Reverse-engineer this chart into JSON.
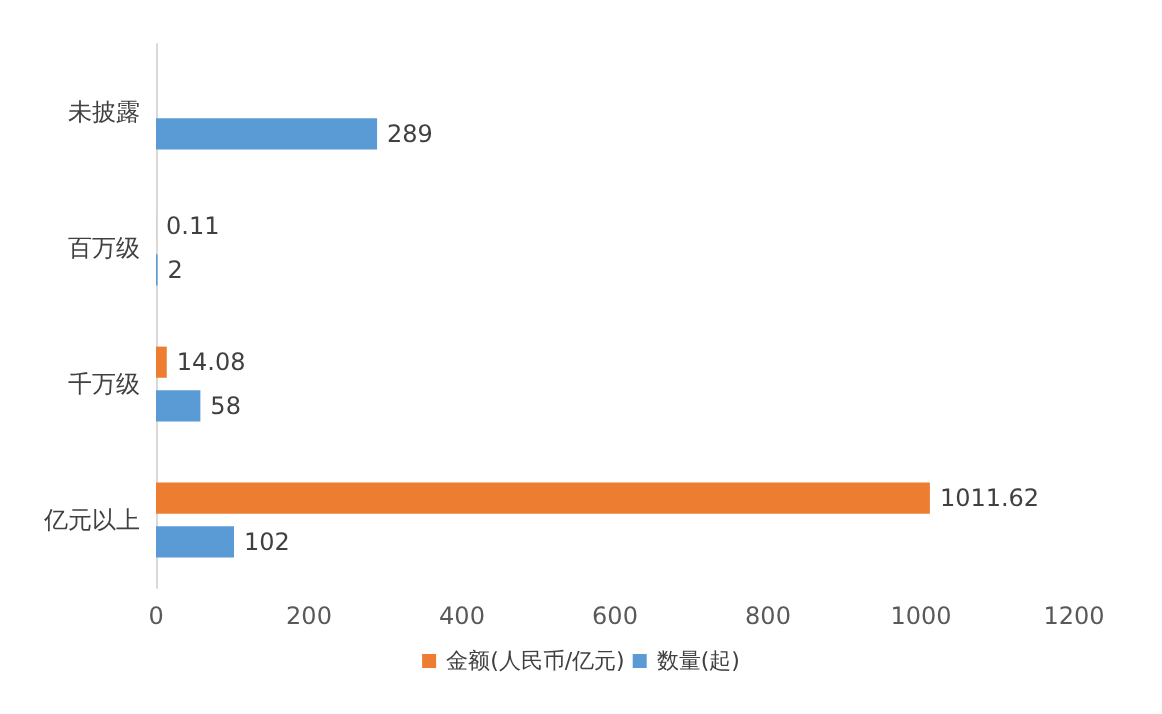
{
  "chart_data": {
    "type": "bar",
    "orientation": "horizontal",
    "categories": [
      "未披露",
      "百万级",
      "千万级",
      "亿元以上"
    ],
    "series": [
      {
        "name": "金额(人民币/亿元)",
        "color": "#ed7d31",
        "values": [
          null,
          0.11,
          14.08,
          1011.62
        ]
      },
      {
        "name": "数量(起)",
        "color": "#5b9bd5",
        "values": [
          289,
          2,
          58,
          102
        ]
      }
    ],
    "xlim": [
      0,
      1200
    ],
    "xticks": [
      0,
      200,
      400,
      600,
      800,
      1000,
      1200
    ],
    "grid": false,
    "legend": "bottom",
    "data_labels": true
  }
}
